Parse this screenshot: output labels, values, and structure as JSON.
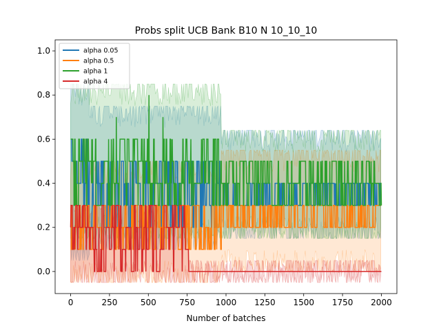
{
  "chart_data": {
    "type": "line",
    "title": "Probs split UCB Bank B10 N 10_10_10",
    "xlabel": "Number of batches",
    "ylabel": "",
    "xlim": [
      -100,
      2100
    ],
    "ylim": [
      -0.1,
      1.05
    ],
    "xticks": [
      0,
      250,
      500,
      750,
      1000,
      1250,
      1500,
      1750,
      2000
    ],
    "yticks": [
      0.0,
      0.2,
      0.4,
      0.6,
      0.8,
      1.0
    ],
    "xtick_labels": [
      "0",
      "250",
      "500",
      "750",
      "1000",
      "1250",
      "1500",
      "1750",
      "2000"
    ],
    "ytick_labels": [
      "0.0",
      "0.2",
      "0.4",
      "0.6",
      "0.8",
      "1.0"
    ],
    "grid": false,
    "legend_position": "top-left",
    "series": [
      {
        "name": "alpha 0.05",
        "color": "#1f77b4",
        "segments": [
          {
            "x_start": 0,
            "x_end": 120,
            "mean_levels": [
              0.3,
              0.4,
              0.5,
              0.6
            ],
            "band": [
              0.05,
              0.85
            ]
          },
          {
            "x_start": 120,
            "x_end": 970,
            "mean_levels": [
              0.2,
              0.3,
              0.4,
              0.5
            ],
            "band": [
              0.1,
              0.75
            ]
          },
          {
            "x_start": 970,
            "x_end": 2000,
            "mean_levels": [
              0.3,
              0.4
            ],
            "band": [
              0.15,
              0.64
            ]
          }
        ]
      },
      {
        "name": "alpha 0.5",
        "color": "#ff7f0e",
        "segments": [
          {
            "x_start": 0,
            "x_end": 970,
            "mean_levels": [
              0.1,
              0.2,
              0.3
            ],
            "band": [
              -0.05,
              0.5
            ]
          },
          {
            "x_start": 970,
            "x_end": 2000,
            "mean_levels": [
              0.2,
              0.3
            ],
            "band": [
              0.0,
              0.55
            ]
          }
        ]
      },
      {
        "name": "alpha 1",
        "color": "#2ca02c",
        "segments": [
          {
            "x_start": 0,
            "x_end": 970,
            "mean_levels": [
              0.3,
              0.4,
              0.5,
              0.6
            ],
            "band": [
              0.15,
              0.85
            ],
            "spikes": [
              0.7,
              0.8
            ]
          },
          {
            "x_start": 970,
            "x_end": 2000,
            "mean_levels": [
              0.3,
              0.4,
              0.5
            ],
            "band": [
              0.15,
              0.64
            ]
          }
        ]
      },
      {
        "name": "alpha 4",
        "color": "#d62728",
        "segments": [
          {
            "x_start": 0,
            "x_end": 760,
            "mean_levels": [
              0.0,
              0.1,
              0.2,
              0.3
            ],
            "band": [
              -0.05,
              0.3
            ]
          },
          {
            "x_start": 760,
            "x_end": 2000,
            "mean_levels": [
              0.0
            ],
            "band": [
              -0.05,
              0.05
            ]
          }
        ]
      }
    ]
  }
}
